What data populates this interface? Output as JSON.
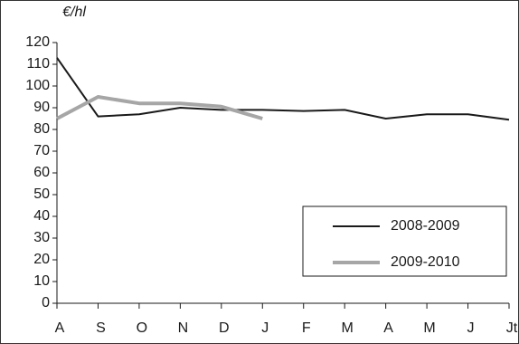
{
  "chart_data": {
    "type": "line",
    "y_label": "€/hl",
    "categories": [
      "A",
      "S",
      "O",
      "N",
      "D",
      "J",
      "F",
      "M",
      "A",
      "M",
      "J",
      "Jt"
    ],
    "series": [
      {
        "name": "2008-2009",
        "color": "#1a1a1a",
        "values": [
          113,
          86,
          87,
          90,
          89,
          89,
          88.5,
          89,
          85,
          87,
          87,
          84.5
        ]
      },
      {
        "name": "2009-2010",
        "color": "#a6a6a6",
        "values": [
          85,
          95,
          92,
          92,
          90.5,
          85,
          null,
          null,
          null,
          null,
          null,
          null
        ]
      }
    ],
    "ylim": [
      0,
      120
    ],
    "yticks": [
      0,
      10,
      20,
      30,
      40,
      50,
      60,
      70,
      80,
      90,
      100,
      110,
      120
    ],
    "grid": false
  }
}
